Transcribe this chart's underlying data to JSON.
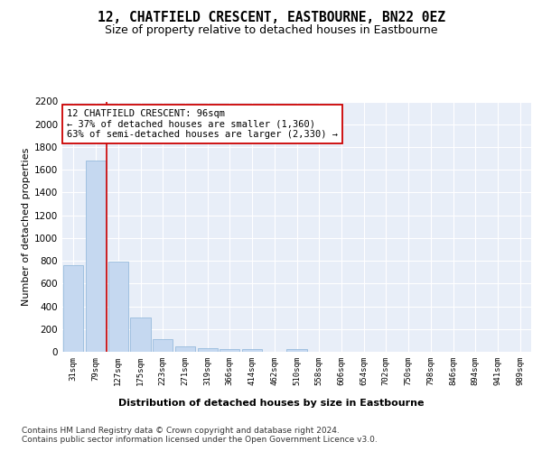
{
  "title": "12, CHATFIELD CRESCENT, EASTBOURNE, BN22 0EZ",
  "subtitle": "Size of property relative to detached houses in Eastbourne",
  "xlabel": "Distribution of detached houses by size in Eastbourne",
  "ylabel": "Number of detached properties",
  "categories": [
    "31sqm",
    "79sqm",
    "127sqm",
    "175sqm",
    "223sqm",
    "271sqm",
    "319sqm",
    "366sqm",
    "414sqm",
    "462sqm",
    "510sqm",
    "558sqm",
    "606sqm",
    "654sqm",
    "702sqm",
    "750sqm",
    "798sqm",
    "846sqm",
    "894sqm",
    "941sqm",
    "989sqm"
  ],
  "values": [
    760,
    1680,
    795,
    300,
    110,
    45,
    33,
    27,
    22,
    0,
    22,
    0,
    0,
    0,
    0,
    0,
    0,
    0,
    0,
    0,
    0
  ],
  "bar_color": "#c5d8f0",
  "bar_edge_color": "#8ab4d8",
  "vline_x_pos": 1.5,
  "vline_color": "#cc0000",
  "annotation_text": "12 CHATFIELD CRESCENT: 96sqm\n← 37% of detached houses are smaller (1,360)\n63% of semi-detached houses are larger (2,330) →",
  "annotation_box_facecolor": "#ffffff",
  "annotation_box_edgecolor": "#cc0000",
  "ylim": [
    0,
    2200
  ],
  "yticks": [
    0,
    200,
    400,
    600,
    800,
    1000,
    1200,
    1400,
    1600,
    1800,
    2000,
    2200
  ],
  "bg_color": "#e8eef8",
  "footer": "Contains HM Land Registry data © Crown copyright and database right 2024.\nContains public sector information licensed under the Open Government Licence v3.0.",
  "title_fontsize": 10.5,
  "subtitle_fontsize": 9,
  "ylabel_fontsize": 8,
  "annotation_fontsize": 7.5,
  "xtick_fontsize": 6.5,
  "ytick_fontsize": 7.5,
  "xlabel_fontsize": 8,
  "footer_fontsize": 6.5
}
